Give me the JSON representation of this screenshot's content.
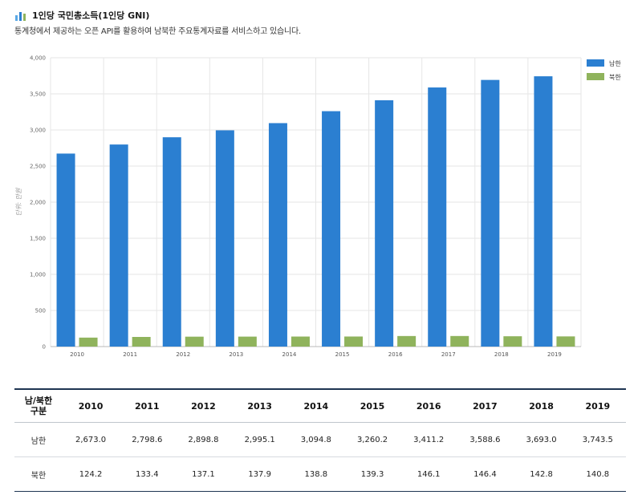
{
  "header": {
    "title": "1인당 국민총소득(1인당 GNI)",
    "subtitle": "통계청에서 제공하는 오픈 API를 활용하여 남북한 주요통계자료를 서비스하고 있습니다.",
    "icon": "bar-chart-icon"
  },
  "colors": {
    "south": "#2b7fd1",
    "north": "#8fb35c",
    "grid": "#e6e6e6",
    "axis": "#b8b8b8",
    "table_rule": "#1f3552"
  },
  "chart_data": {
    "type": "bar",
    "categories": [
      "2010",
      "2011",
      "2012",
      "2013",
      "2014",
      "2015",
      "2016",
      "2017",
      "2018",
      "2019"
    ],
    "series": [
      {
        "name": "남한",
        "values": [
          2673.0,
          2798.6,
          2898.8,
          2995.1,
          3094.8,
          3260.2,
          3411.2,
          3588.6,
          3693.0,
          3743.5
        ]
      },
      {
        "name": "북한",
        "values": [
          124.2,
          133.4,
          137.1,
          137.9,
          138.8,
          139.3,
          146.1,
          146.4,
          142.8,
          140.8
        ]
      }
    ],
    "ylabel": "단위: 만원",
    "ylim": [
      0,
      4000
    ],
    "yticks": [
      "0",
      "500",
      "1,000",
      "1,500",
      "2,000",
      "2,500",
      "3,000",
      "3,500",
      "4,000"
    ],
    "grid": true,
    "legend_position": "top-right"
  },
  "table": {
    "corner_line1": "남/북한",
    "corner_line2": "구분",
    "years": [
      "2010",
      "2011",
      "2012",
      "2013",
      "2014",
      "2015",
      "2016",
      "2017",
      "2018",
      "2019"
    ],
    "rows": [
      {
        "label": "남한",
        "values": [
          "2,673.0",
          "2,798.6",
          "2,898.8",
          "2,995.1",
          "3,094.8",
          "3,260.2",
          "3,411.2",
          "3,588.6",
          "3,693.0",
          "3,743.5"
        ]
      },
      {
        "label": "북한",
        "values": [
          "124.2",
          "133.4",
          "137.1",
          "137.9",
          "138.8",
          "139.3",
          "146.1",
          "146.4",
          "142.8",
          "140.8"
        ]
      }
    ]
  }
}
